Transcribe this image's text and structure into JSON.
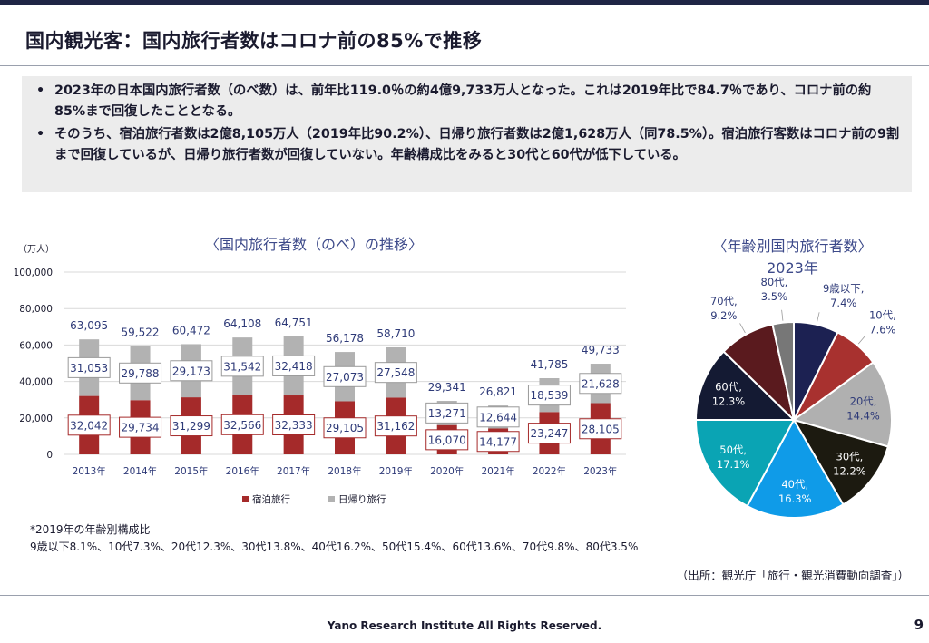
{
  "header": {
    "title": "国内観光客：国内旅行者数はコロナ前の85%で推移"
  },
  "summary": {
    "bullets": [
      "2023年の日本国内旅行者数（のべ数）は、前年比119.0％の約4億9,733万人となった。これは2019年比で84.7％であり、コロナ前の約85%まで回復したこととなる。",
      "そのうち、宿泊旅行者数は2億8,105万人（2019年比90.2%）、日帰り旅行者数は2億1,628万人（同78.5%）。宿泊旅行客数はコロナ前の9割まで回復しているが、日帰り旅行者数が回復していない。年齢構成比をみると30代と60代が低下している。"
    ]
  },
  "chart_data": [
    {
      "type": "bar",
      "title": "〈国内旅行者数（のべ）の推移〉",
      "ylabel": "（万人）",
      "ylim": [
        0,
        100000
      ],
      "yticks": [
        "0",
        "20,000",
        "40,000",
        "60,000",
        "80,000",
        "100,000"
      ],
      "grid": true,
      "stacked": true,
      "legend_position": "bottom",
      "categories": [
        "2013年",
        "2014年",
        "2015年",
        "2016年",
        "2017年",
        "2018年",
        "2019年",
        "2020年",
        "2021年",
        "2022年",
        "2023年"
      ],
      "series": [
        {
          "name": "宿泊旅行",
          "color": "#a52a2a",
          "values": [
            32042,
            29734,
            31299,
            32566,
            32333,
            29105,
            31162,
            16070,
            14177,
            23247,
            28105
          ],
          "labels": [
            "32,042",
            "29,734",
            "31,299",
            "32,566",
            "32,333",
            "29,105",
            "31,162",
            "16,070",
            "14,177",
            "23,247",
            "28,105"
          ]
        },
        {
          "name": "日帰り旅行",
          "color": "#b2b2b2",
          "values": [
            31053,
            29788,
            29173,
            31542,
            32418,
            27073,
            27548,
            13271,
            12644,
            18539,
            21628
          ],
          "labels": [
            "31,053",
            "29,788",
            "29,173",
            "31,542",
            "32,418",
            "27,073",
            "27,548",
            "13,271",
            "12,644",
            "18,539",
            "21,628"
          ]
        }
      ],
      "totals": [
        63095,
        59522,
        60472,
        64108,
        64751,
        56178,
        58710,
        29341,
        26821,
        41785,
        49733
      ],
      "total_labels": [
        "63,095",
        "59,522",
        "60,472",
        "64,108",
        "64,751",
        "56,178",
        "58,710",
        "29,341",
        "26,821",
        "41,785",
        "49,733"
      ]
    },
    {
      "type": "pie",
      "title": "〈年齢別国内旅行者数〉",
      "subtitle": "2023年",
      "slices": [
        {
          "label": "9歳以下",
          "value": 7.4,
          "pct": "7.4%",
          "color": "#1c2152"
        },
        {
          "label": "10代",
          "value": 7.6,
          "pct": "7.6%",
          "color": "#a8312f"
        },
        {
          "label": "20代",
          "value": 14.4,
          "pct": "14.4%",
          "color": "#b0b0b0"
        },
        {
          "label": "30代",
          "value": 12.2,
          "pct": "12.2%",
          "color": "#1c1a10"
        },
        {
          "label": "40代",
          "value": 16.3,
          "pct": "16.3%",
          "color": "#0f9be8"
        },
        {
          "label": "50代",
          "value": 17.1,
          "pct": "17.1%",
          "color": "#0aa4b4"
        },
        {
          "label": "60代",
          "value": 12.3,
          "pct": "12.3%",
          "color": "#141a33"
        },
        {
          "label": "70代",
          "value": 9.2,
          "pct": "9.2%",
          "color": "#5a1a1e"
        },
        {
          "label": "80代",
          "value": 3.5,
          "pct": "3.5%",
          "color": "#777777"
        }
      ]
    }
  ],
  "notes": {
    "line1": "*2019年の年齢別構成比",
    "line2": "9歳以下8.1%、10代7.3%、20代12.3%、30代13.8%、40代16.2%、50代15.4%、60代13.6%、70代9.8%、80代3.5%"
  },
  "source": "（出所：観光庁「旅行・観光消費動向調査」）",
  "footer": {
    "copyright": "Yano Research Institute All Rights Reserved.",
    "page_number": "9"
  }
}
